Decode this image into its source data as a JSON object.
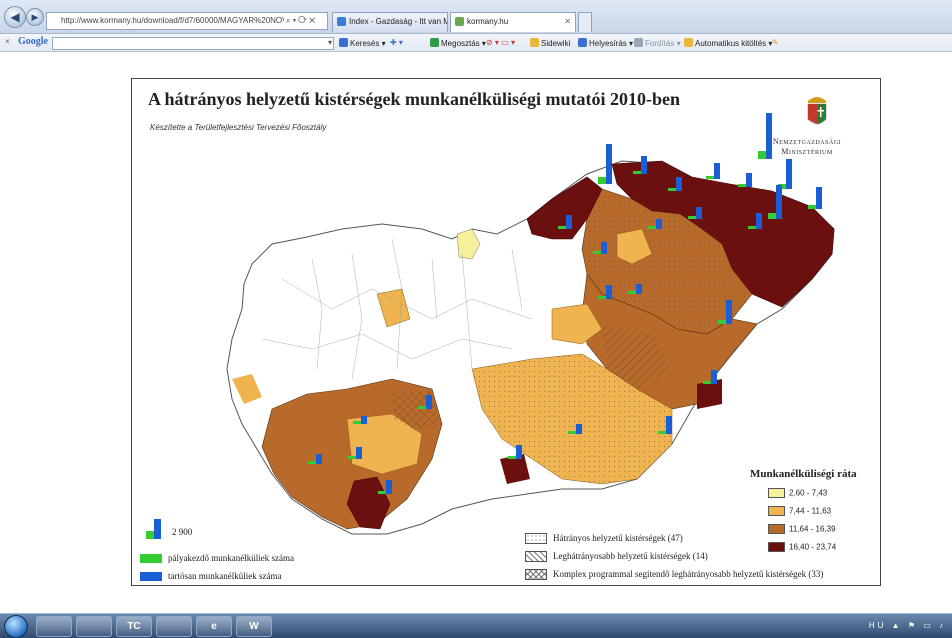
{
  "browser": {
    "address_url": "http://www.kormany.hu/download/f/d7/60000/MAGYAR%20NOVEKE",
    "tabs": [
      {
        "label": "Index - Gazdaság - Itt van Mat..."
      },
      {
        "label": "kormany.hu"
      }
    ],
    "address_icons": "⌕ ▾ ⟳ ✕"
  },
  "google_toolbar": {
    "logo": "Google",
    "items": [
      {
        "label": "Keresés",
        "icon": "search-icon",
        "color": "#3b6fd0"
      },
      {
        "label": "Megosztás",
        "icon": "share-icon",
        "color": "#2f9b42"
      },
      {
        "label": "Sidewiki",
        "icon": "sidewiki-icon",
        "color": "#e8b83a"
      },
      {
        "label": "Helyesírás",
        "icon": "spellcheck-icon",
        "color": "#3b6fd0"
      },
      {
        "label": "Fordítás",
        "icon": "translate-icon",
        "color": "#9aa5b5"
      },
      {
        "label": "Automatikus kitöltés",
        "icon": "autofill-icon",
        "color": "#e8b83a"
      }
    ]
  },
  "map": {
    "title": "A hátrányos helyzetű kistérségek munkanélküliségi mutatói 2010-ben",
    "subtitle": "Készítette a Területfejlesztési Tervezési Főosztály",
    "ministry_line1": "Nemzetgazdasági",
    "ministry_line2": "Minisztérium",
    "legend_title": "Munkanélküliségi ráta",
    "rate_classes": [
      {
        "label": "2,60 - 7,43",
        "color": "#f7ef9a"
      },
      {
        "label": "7,44 - 11,63",
        "color": "#efb44f"
      },
      {
        "label": "11,64 - 16,39",
        "color": "#b86a2b"
      },
      {
        "label": "16,40 - 23,74",
        "color": "#6b0f0f"
      }
    ],
    "hatch_legend": [
      {
        "label": "Hátrányos helyzetű kistérségek (47)"
      },
      {
        "label": "Leghátrányosabb helyzetű kistérségek (14)"
      },
      {
        "label": "Komplex programmal segítendő leghátrányosabb helyzetű kistérségek (33)"
      }
    ],
    "bar_legend": {
      "scale_value": "2 900",
      "entrant": {
        "label": "pályakezdő munkanélküliek száma",
        "color": "#33cc33"
      },
      "longterm": {
        "label": "tartósan munkanélküliek száma",
        "color": "#1a5fd6"
      }
    }
  },
  "taskbar": {
    "apps": [
      {
        "label": "",
        "icon": "explorer-folder-icon"
      },
      {
        "label": "",
        "icon": "media-player-icon"
      },
      {
        "label": "TC",
        "icon": "total-commander-icon"
      },
      {
        "label": "",
        "icon": "paint-icon"
      },
      {
        "label": "e",
        "icon": "internet-explorer-icon"
      },
      {
        "label": "W",
        "icon": "word-icon"
      }
    ],
    "language": "HU"
  }
}
